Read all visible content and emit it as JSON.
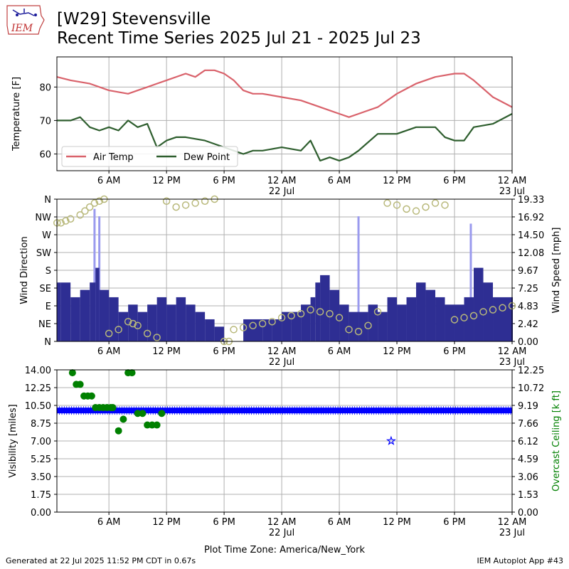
{
  "header": {
    "title_line1": "[W29] Stevensville",
    "title_line2": "Recent Time Series 2025 Jul 21 - 2025 Jul 23",
    "logo_text": "IEM"
  },
  "footer": {
    "generated": "Generated at 22 Jul 2025 11:52 PM CDT in 0.67s",
    "app": "IEM Autoplot App #43"
  },
  "colors": {
    "air_temp": "#d9626b",
    "dew_point": "#2e5e2e",
    "wind_speed": "#2e2e93",
    "wind_gust": "#9a9aee",
    "wind_dir": "#b8b87a",
    "visibility": "#0000ff",
    "ceiling": "#008000",
    "grid": "#b0b0b0"
  },
  "chart_data": [
    {
      "type": "line",
      "name": "temperature",
      "xlabel": "",
      "ylabel": "Temperature [F]",
      "ylim": [
        55,
        89
      ],
      "yticks": [
        60,
        70,
        80
      ],
      "xlim": [
        0.58,
        48.0
      ],
      "xticks": [
        6,
        12,
        18,
        24,
        30,
        36,
        42,
        48
      ],
      "xtick_labels": [
        "6 AM",
        "12 PM",
        "6 PM",
        "12 AM",
        "6 AM",
        "12 PM",
        "6 PM",
        "12 AM"
      ],
      "xtick_sublabels": {
        "24": "22 Jul",
        "48": "23 Jul"
      },
      "grid": true,
      "legend": "bottom-left",
      "series": [
        {
          "name": "Air Temp",
          "x": [
            0.6,
            2,
            4,
            6,
            8,
            9,
            10,
            11,
            12,
            14,
            15,
            16,
            17,
            18,
            19,
            20,
            21,
            22,
            24,
            26,
            28,
            29,
            30,
            31,
            32,
            34,
            36,
            38,
            40,
            42,
            43,
            44,
            46,
            48
          ],
          "values": [
            83,
            82,
            81,
            79,
            78,
            79,
            80,
            81,
            82,
            84,
            83,
            85,
            85,
            84,
            82,
            79,
            78,
            78,
            77,
            76,
            74,
            73,
            72,
            71,
            72,
            74,
            78,
            81,
            83,
            84,
            84,
            82,
            77,
            74
          ]
        },
        {
          "name": "Dew Point",
          "x": [
            0.6,
            1.5,
            2,
            3,
            4,
            5,
            6,
            7,
            8,
            9,
            10,
            11,
            12,
            13,
            14,
            16,
            17,
            18,
            19,
            20,
            21,
            22,
            24,
            26,
            27,
            28,
            29,
            30,
            31,
            32,
            34,
            36,
            38,
            40,
            41,
            42,
            43,
            44,
            46,
            48
          ],
          "values": [
            70,
            70,
            70,
            71,
            68,
            67,
            68,
            67,
            70,
            68,
            69,
            62,
            64,
            65,
            65,
            64,
            63,
            62,
            61,
            60,
            61,
            61,
            62,
            61,
            64,
            58,
            59,
            58,
            59,
            61,
            66,
            66,
            68,
            68,
            65,
            64,
            64,
            68,
            69,
            72
          ]
        }
      ]
    },
    {
      "type": "bar",
      "name": "wind",
      "xlabel": "",
      "ylabel": "Wind Direction",
      "y2label": "Wind Speed [mph]",
      "ylim": [
        0,
        360
      ],
      "yticks": [
        0,
        45,
        90,
        135,
        180,
        225,
        270,
        315,
        360
      ],
      "ytick_labels": [
        "N",
        "NE",
        "E",
        "SE",
        "S",
        "SW",
        "W",
        "NW",
        "N"
      ],
      "y2lim": [
        0,
        19.33
      ],
      "y2ticks": [
        0.0,
        2.42,
        4.83,
        7.25,
        9.67,
        12.08,
        14.5,
        16.92,
        19.33
      ],
      "xlim": [
        0.58,
        48.0
      ],
      "xticks": [
        6,
        12,
        18,
        24,
        30,
        36,
        42,
        48
      ],
      "xtick_labels": [
        "6 AM",
        "12 PM",
        "6 PM",
        "12 AM",
        "6 AM",
        "12 PM",
        "6 PM",
        "12 AM"
      ],
      "xtick_sublabels": {
        "24": "22 Jul",
        "48": "23 Jul"
      },
      "grid": true,
      "series": [
        {
          "name": "speed",
          "x": [
            0.6,
            1,
            2,
            3,
            4,
            4.6,
            5,
            6,
            7,
            8,
            9,
            10,
            11,
            12,
            13,
            14,
            15,
            16,
            17,
            18,
            19,
            20,
            22,
            23,
            24,
            25,
            26,
            27,
            27.5,
            28,
            29,
            30,
            31,
            32,
            33,
            34,
            35,
            36,
            37,
            38,
            39,
            40,
            41,
            42,
            43,
            44,
            45,
            46,
            47,
            48
          ],
          "values": [
            8,
            8,
            6,
            7,
            8,
            10,
            7,
            6,
            4,
            5,
            4,
            5,
            6,
            5,
            6,
            5,
            4,
            3,
            2,
            0,
            0,
            3,
            3,
            3,
            4,
            4,
            5,
            6,
            8,
            9,
            7,
            5,
            4,
            4,
            5,
            4,
            6,
            5,
            6,
            8,
            7,
            6,
            5,
            5,
            6,
            10,
            8,
            6,
            6,
            6
          ]
        },
        {
          "name": "gust",
          "x": [
            4.5,
            5,
            32,
            43.7
          ],
          "values": [
            18,
            17,
            17,
            16
          ]
        },
        {
          "name": "direction",
          "x": [
            0.6,
            1,
            1.5,
            2,
            3,
            3.5,
            4,
            4.5,
            5,
            5.5,
            6,
            7,
            8,
            8.5,
            9,
            10,
            11,
            12,
            13,
            14,
            15,
            16,
            17,
            18,
            18.5,
            19,
            20,
            21,
            22,
            23,
            24,
            25,
            26,
            27,
            28,
            29,
            30,
            31,
            32,
            33,
            34,
            35,
            36,
            37,
            38,
            39,
            40,
            41,
            42,
            43,
            44,
            45,
            46,
            47,
            48
          ],
          "values": [
            300,
            300,
            305,
            310,
            320,
            330,
            340,
            350,
            355,
            360,
            20,
            30,
            50,
            45,
            40,
            20,
            10,
            355,
            340,
            345,
            350,
            355,
            360,
            0,
            0,
            30,
            35,
            40,
            45,
            50,
            60,
            65,
            70,
            80,
            75,
            70,
            60,
            30,
            25,
            40,
            75,
            350,
            345,
            335,
            330,
            340,
            350,
            345,
            55,
            60,
            65,
            75,
            80,
            85,
            90
          ]
        }
      ]
    },
    {
      "type": "scatter",
      "name": "visibility_ceiling",
      "xlabel": "Plot Time Zone: America/New_York",
      "ylabel": "Visibility [miles]",
      "y2label": "Overcast Ceiling [k ft]",
      "ylim": [
        0,
        14
      ],
      "yticks": [
        0.0,
        1.75,
        3.5,
        5.25,
        7.0,
        8.75,
        10.5,
        12.25,
        14.0
      ],
      "y2lim": [
        0,
        12.25
      ],
      "y2ticks": [
        0.0,
        1.53,
        3.06,
        4.59,
        6.12,
        7.66,
        9.19,
        10.72,
        12.25
      ],
      "xlim": [
        0.58,
        48.0
      ],
      "xticks": [
        6,
        12,
        18,
        24,
        30,
        36,
        42,
        48
      ],
      "xtick_labels": [
        "6 AM",
        "12 PM",
        "6 PM",
        "12 AM",
        "6 AM",
        "12 PM",
        "6 PM",
        "12 AM"
      ],
      "xtick_sublabels": {
        "24": "22 Jul",
        "48": "23 Jul"
      },
      "grid": true,
      "series": [
        {
          "name": "visibility",
          "constant": 10,
          "x_start": 0.6,
          "x_end": 48,
          "outliers": [
            {
              "x": 35.4,
              "y": 7
            }
          ]
        },
        {
          "name": "ceiling",
          "x": [
            2.2,
            2.6,
            3.0,
            3.4,
            3.8,
            4.2,
            4.6,
            5.0,
            5.4,
            5.8,
            6.2,
            6.4,
            7.0,
            7.5,
            8.0,
            8.4,
            9.0,
            9.5,
            10.0,
            10.5,
            11.0,
            11.5
          ],
          "values": [
            12.0,
            11.0,
            11.0,
            10.0,
            10.0,
            10.0,
            9.0,
            9.0,
            9.0,
            9.0,
            9.0,
            9.0,
            7.0,
            8.0,
            12.0,
            12.0,
            8.5,
            8.5,
            7.5,
            7.5,
            7.5,
            8.5
          ]
        }
      ]
    }
  ]
}
